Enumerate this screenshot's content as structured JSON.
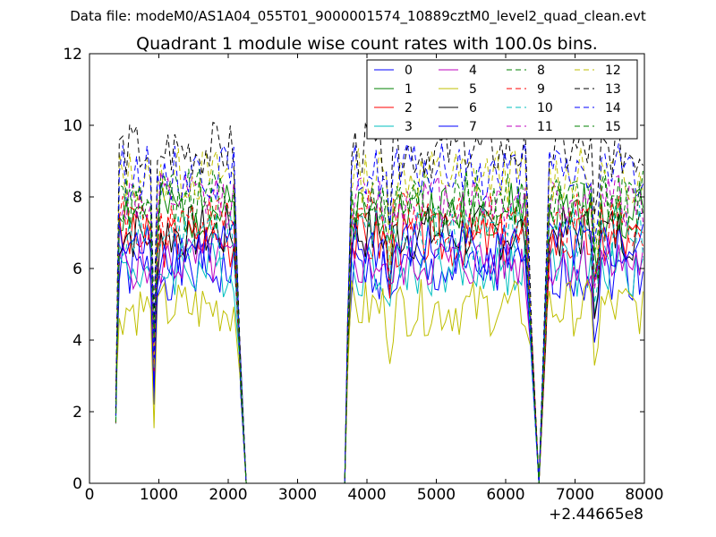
{
  "figure": {
    "suptitle": "Data file: modeM0/AS1A04_055T01_9000001574_10889cztM0_level2_quad_clean.evt"
  },
  "chart_data": {
    "type": "line",
    "title": "Quadrant 1 module wise count rates with 100.0s bins.",
    "xlabel": "",
    "ylabel": "",
    "x_offset_label": "+2.44665e8",
    "xlim": [
      0,
      8000
    ],
    "ylim": [
      0,
      12
    ],
    "xticks": [
      0,
      1000,
      2000,
      3000,
      4000,
      5000,
      6000,
      7000,
      8000
    ],
    "yticks": [
      0,
      2,
      4,
      6,
      8,
      10,
      12
    ],
    "xtick_labels": [
      "0",
      "1000",
      "2000",
      "3000",
      "4000",
      "5000",
      "6000",
      "7000",
      "8000"
    ],
    "ytick_labels": [
      "0",
      "2",
      "4",
      "6",
      "8",
      "10",
      "12"
    ],
    "legend_position": "top-right",
    "legend_columns": 4,
    "series": [
      {
        "name": "0",
        "color": "#0000ff",
        "style": "solid",
        "base": 5.9,
        "seed": 1
      },
      {
        "name": "1",
        "color": "#008000",
        "style": "solid",
        "base": 7.6,
        "seed": 2
      },
      {
        "name": "2",
        "color": "#ff0000",
        "style": "solid",
        "base": 6.8,
        "seed": 3
      },
      {
        "name": "3",
        "color": "#00bfbf",
        "style": "solid",
        "base": 6.0,
        "seed": 4
      },
      {
        "name": "4",
        "color": "#bf00bf",
        "style": "solid",
        "base": 6.2,
        "seed": 5
      },
      {
        "name": "5",
        "color": "#bfbf00",
        "style": "solid",
        "base": 4.9,
        "seed": 6
      },
      {
        "name": "6",
        "color": "#000000",
        "style": "solid",
        "base": 7.0,
        "seed": 7
      },
      {
        "name": "7",
        "color": "#0000ff",
        "style": "solid",
        "base": 6.6,
        "seed": 8
      },
      {
        "name": "8",
        "color": "#008000",
        "style": "dashed",
        "base": 8.0,
        "seed": 9
      },
      {
        "name": "9",
        "color": "#ff0000",
        "style": "dashed",
        "base": 7.4,
        "seed": 10
      },
      {
        "name": "10",
        "color": "#00bfbf",
        "style": "dashed",
        "base": 7.0,
        "seed": 11
      },
      {
        "name": "11",
        "color": "#bf00bf",
        "style": "dashed",
        "base": 7.9,
        "seed": 12
      },
      {
        "name": "12",
        "color": "#bfbf00",
        "style": "dashed",
        "base": 8.6,
        "seed": 13
      },
      {
        "name": "13",
        "color": "#000000",
        "style": "dashed",
        "base": 9.3,
        "seed": 14
      },
      {
        "name": "14",
        "color": "#0000ff",
        "style": "dashed",
        "base": 8.7,
        "seed": 15
      },
      {
        "name": "15",
        "color": "#008000",
        "style": "dashed",
        "base": 7.8,
        "seed": 16
      }
    ],
    "segments": [
      {
        "start": 380,
        "end": 2080,
        "step": 50
      },
      {
        "start": 3680,
        "end": 6280,
        "step": 50
      },
      {
        "start": 6580,
        "end": 8000,
        "step": 50
      }
    ],
    "gap_points": [
      [
        2080,
        2180,
        2260,
        3680
      ],
      [
        6280,
        6380,
        6480,
        6580
      ]
    ],
    "dip_points": [
      {
        "x": 930,
        "depth": 0.55
      },
      {
        "x": 4330,
        "depth": 0.2
      },
      {
        "x": 7300,
        "depth": 0.35
      }
    ]
  }
}
